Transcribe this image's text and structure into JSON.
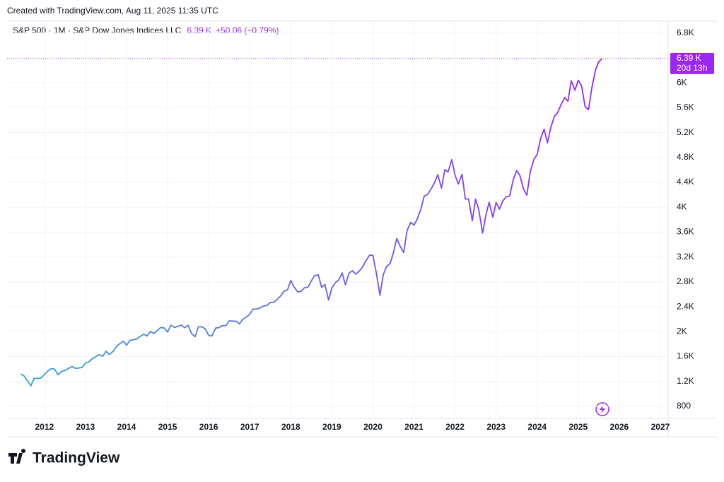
{
  "chart_data": {
    "type": "line",
    "created": "Created with TradingView.com, Aug 11, 2025 11:35 UTC",
    "title": "S&P 500 · 1M · S&P Dow Jones Indices LLC",
    "last_price": {
      "value": 6390,
      "label": "6.39 K"
    },
    "change": "+50.06 (+0.79%)",
    "countdown": "20d 13h",
    "brand": "TradingView",
    "colors": [
      "#2fa4e0",
      "#9c27f2"
    ],
    "price_line_color": "#b04fe8",
    "grid": true,
    "xlim": [
      2011.09,
      2027.19
    ],
    "xticks": [
      2012,
      2013,
      2014,
      2015,
      2016,
      2017,
      2018,
      2019,
      2020,
      2021,
      2022,
      2023,
      2024,
      2025,
      2026,
      2027
    ],
    "ylim": [
      607,
      6990
    ],
    "yticks": [
      800,
      {
        "value": 1200,
        "label": "1.2K"
      },
      {
        "value": 1600,
        "label": "1.6K"
      },
      {
        "value": 2000,
        "label": "2K"
      },
      {
        "value": 2400,
        "label": "2.4K"
      },
      {
        "value": 2800,
        "label": "2.8K"
      },
      {
        "value": 3200,
        "label": "3.2K"
      },
      {
        "value": 3600,
        "label": "3.6K"
      },
      {
        "value": 4000,
        "label": "4K"
      },
      {
        "value": 4400,
        "label": "4.4K"
      },
      {
        "value": 4800,
        "label": "4.8K"
      },
      {
        "value": 5200,
        "label": "5.2K"
      },
      {
        "value": 5600,
        "label": "5.6K"
      },
      {
        "value": 6000,
        "label": "6K"
      },
      {
        "value": 6400,
        "label": "6.4K"
      },
      {
        "value": 6800,
        "label": "6.8K"
      }
    ],
    "x": [
      2011.42,
      2011.5,
      2011.58,
      2011.67,
      2011.75,
      2011.83,
      2011.92,
      2012,
      2012.08,
      2012.17,
      2012.25,
      2012.33,
      2012.42,
      2012.5,
      2012.58,
      2012.67,
      2012.75,
      2012.83,
      2012.92,
      2013,
      2013.08,
      2013.17,
      2013.25,
      2013.33,
      2013.42,
      2013.5,
      2013.58,
      2013.67,
      2013.75,
      2013.83,
      2013.92,
      2014,
      2014.08,
      2014.17,
      2014.25,
      2014.33,
      2014.42,
      2014.5,
      2014.58,
      2014.67,
      2014.75,
      2014.83,
      2014.92,
      2015,
      2015.08,
      2015.17,
      2015.25,
      2015.33,
      2015.42,
      2015.5,
      2015.58,
      2015.67,
      2015.75,
      2015.83,
      2015.92,
      2016,
      2016.08,
      2016.17,
      2016.25,
      2016.33,
      2016.42,
      2016.5,
      2016.58,
      2016.67,
      2016.75,
      2016.83,
      2016.92,
      2017,
      2017.08,
      2017.17,
      2017.25,
      2017.33,
      2017.42,
      2017.5,
      2017.58,
      2017.67,
      2017.75,
      2017.83,
      2017.92,
      2018,
      2018.08,
      2018.17,
      2018.25,
      2018.33,
      2018.42,
      2018.5,
      2018.58,
      2018.67,
      2018.75,
      2018.83,
      2018.92,
      2019,
      2019.08,
      2019.17,
      2019.25,
      2019.33,
      2019.42,
      2019.5,
      2019.58,
      2019.67,
      2019.75,
      2019.83,
      2019.92,
      2020,
      2020.08,
      2020.17,
      2020.25,
      2020.33,
      2020.42,
      2020.5,
      2020.58,
      2020.67,
      2020.75,
      2020.83,
      2020.92,
      2021,
      2021.08,
      2021.17,
      2021.25,
      2021.33,
      2021.42,
      2021.5,
      2021.58,
      2021.67,
      2021.75,
      2021.83,
      2021.92,
      2022,
      2022.08,
      2022.17,
      2022.25,
      2022.33,
      2022.42,
      2022.5,
      2022.58,
      2022.67,
      2022.75,
      2022.83,
      2022.92,
      2023,
      2023.08,
      2023.17,
      2023.25,
      2023.33,
      2023.42,
      2023.5,
      2023.58,
      2023.67,
      2023.75,
      2023.83,
      2023.92,
      2024,
      2024.08,
      2024.17,
      2024.25,
      2024.33,
      2024.42,
      2024.5,
      2024.58,
      2024.67,
      2024.75,
      2024.83,
      2024.92,
      2025,
      2025.08,
      2025.17,
      2025.25,
      2025.33,
      2025.42,
      2025.5,
      2025.58
    ],
    "values": [
      1320,
      1292,
      1219,
      1131,
      1253,
      1247,
      1258,
      1312,
      1366,
      1408,
      1398,
      1310,
      1362,
      1379,
      1407,
      1441,
      1412,
      1416,
      1426,
      1498,
      1515,
      1569,
      1598,
      1631,
      1606,
      1686,
      1633,
      1682,
      1757,
      1806,
      1848,
      1783,
      1859,
      1872,
      1884,
      1924,
      1960,
      1931,
      2003,
      1972,
      2018,
      2068,
      2059,
      1995,
      2105,
      2068,
      2086,
      2107,
      2063,
      2104,
      1972,
      1920,
      2079,
      2080,
      2044,
      1940,
      1932,
      2060,
      2065,
      2097,
      2099,
      2174,
      2171,
      2168,
      2126,
      2199,
      2239,
      2279,
      2364,
      2363,
      2384,
      2412,
      2423,
      2470,
      2472,
      2519,
      2575,
      2648,
      2674,
      2824,
      2714,
      2641,
      2648,
      2705,
      2718,
      2816,
      2902,
      2914,
      2712,
      2760,
      2507,
      2704,
      2784,
      2834,
      2946,
      2752,
      2942,
      2980,
      2926,
      2977,
      3038,
      3141,
      3231,
      3226,
      2954,
      2585,
      2912,
      3044,
      3100,
      3271,
      3500,
      3363,
      3270,
      3622,
      3756,
      3714,
      3811,
      3973,
      4181,
      4204,
      4298,
      4395,
      4523,
      4308,
      4605,
      4567,
      4766,
      4516,
      4374,
      4530,
      4132,
      4132,
      3785,
      4130,
      3955,
      3586,
      3872,
      4080,
      3840,
      4077,
      3970,
      4109,
      4169,
      4180,
      4450,
      4589,
      4508,
      4288,
      4194,
      4568,
      4770,
      4846,
      5096,
      5254,
      5036,
      5278,
      5460,
      5522,
      5648,
      5762,
      5705,
      6032,
      5882,
      6041,
      5955,
      5612,
      5569,
      5912,
      6205,
      6339,
      6389
    ]
  }
}
